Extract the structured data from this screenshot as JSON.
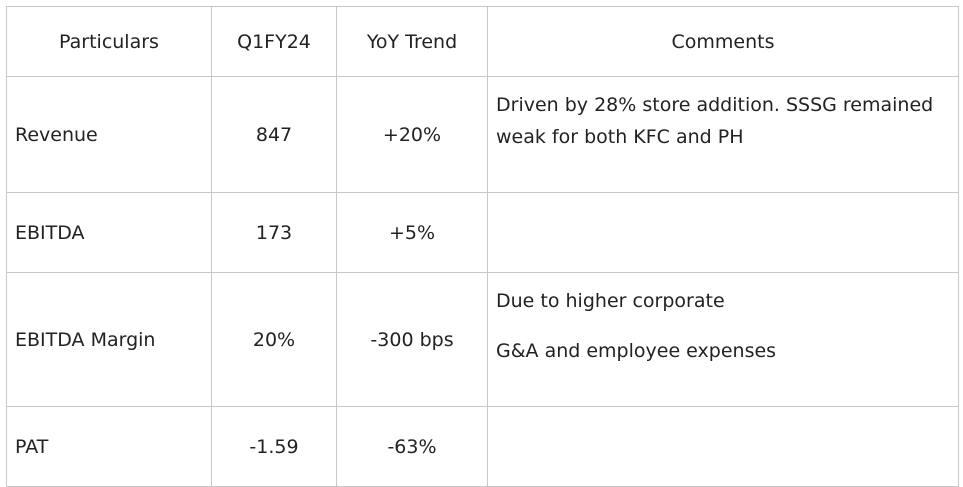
{
  "table": {
    "header": [
      "Particulars",
      "Q1FY24",
      "YoY Trend",
      "Comments"
    ],
    "rows": [
      {
        "particulars": "Revenue",
        "q1fy24": "847",
        "yoy": "+20%",
        "comments": [
          "Driven by 28% store addition. SSSG remained weak for both KFC and PH"
        ]
      },
      {
        "particulars": "EBITDA",
        "q1fy24": "173",
        "yoy": "+5%"
      },
      {
        "particulars": "EBITDA Margin",
        "q1fy24": "20%",
        "yoy": "-300 bps",
        "comments": [
          "Due to higher corporate",
          "G&A and employee expenses"
        ]
      },
      {
        "particulars": "PAT",
        "q1fy24": "-1.59",
        "yoy": "-63%"
      }
    ]
  }
}
